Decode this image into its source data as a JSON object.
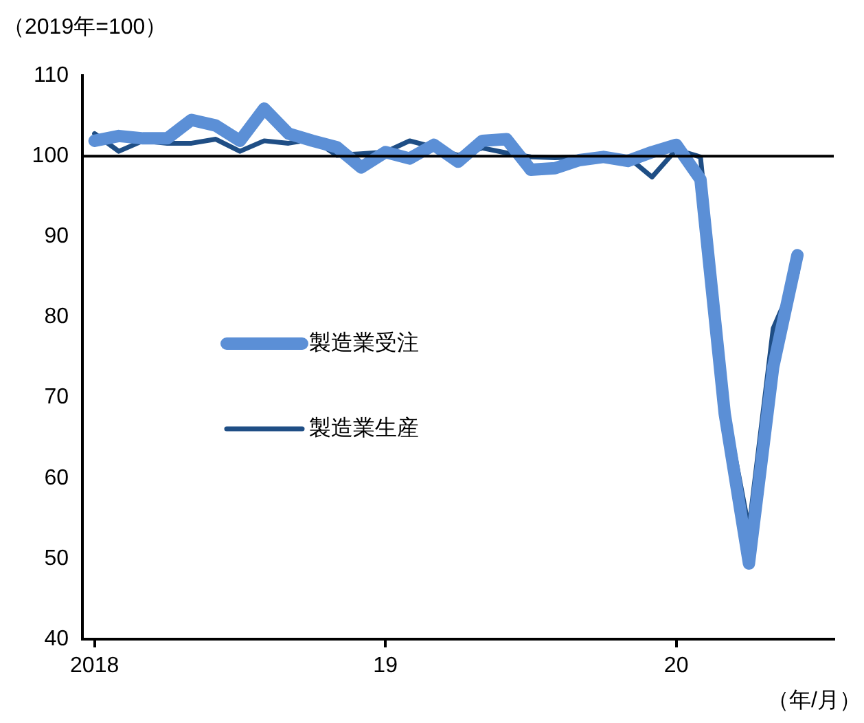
{
  "chart_data": {
    "type": "line",
    "ylabel": "（2019年=100）",
    "xlabel": "（年/月）",
    "categories": [
      "2018",
      null,
      null,
      null,
      null,
      null,
      null,
      null,
      null,
      null,
      null,
      null,
      "19",
      null,
      null,
      null,
      null,
      null,
      null,
      null,
      null,
      null,
      null,
      null,
      "20",
      null,
      null,
      null,
      null,
      null,
      null
    ],
    "series": [
      {
        "name": "製造業受注",
        "color": "#5b8fd6",
        "values": [
          101.9,
          102.5,
          102.2,
          102.2,
          104.5,
          103.8,
          101.9,
          105.9,
          102.8,
          101.9,
          101.1,
          98.6,
          100.5,
          99.7,
          101.4,
          99.3,
          101.9,
          102.1,
          98.3,
          98.5,
          99.5,
          99.9,
          99.4,
          100.5,
          101.4,
          97.1,
          68,
          49.4,
          73.8,
          87.7,
          null
        ]
      },
      {
        "name": "製造業生産",
        "color": "#1f4e85",
        "values": [
          102.8,
          100.6,
          101.9,
          101.6,
          101.6,
          102.1,
          100.6,
          101.9,
          101.6,
          102.1,
          100.1,
          100.3,
          100.5,
          101.9,
          101.1,
          100.1,
          101.0,
          100.4,
          99.9,
          99.8,
          99.9,
          99.6,
          99.9,
          97.4,
          100.8,
          99.9,
          69.5,
          53.7,
          78.6,
          85.5,
          null
        ]
      }
    ],
    "ylim": [
      40,
      110
    ],
    "yticks": [
      40,
      50,
      60,
      70,
      80,
      90,
      100,
      110
    ],
    "ref_lines": [
      {
        "axis": "y",
        "value": 100,
        "color": "#000000"
      }
    ],
    "legend": "center",
    "grid": false,
    "marker": "none",
    "line_style": "solid"
  }
}
